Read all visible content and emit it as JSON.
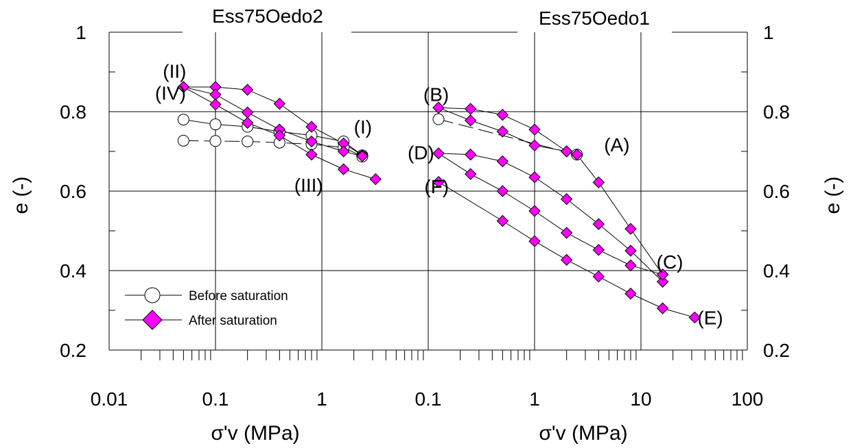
{
  "colors": {
    "after_fill": "#ff00ff",
    "before_fill": "#ffffff",
    "line": "#000000"
  },
  "legend": {
    "before": "Before saturation",
    "after": "After saturation"
  },
  "chart_data": [
    {
      "type": "scatter",
      "title": "Ess75Oedo2",
      "xlabel": "σ'v (MPa)",
      "ylabel": "e (-)",
      "xscale": "log",
      "xlim": [
        0.01,
        3.3
      ],
      "ylim": [
        0.2,
        1.0
      ],
      "x_tick_labels": [
        "0.01",
        "0.1",
        "1"
      ],
      "y_tick_labels": [
        "0.2",
        "0.4",
        "0.6",
        "0.8",
        "1"
      ],
      "grid": true,
      "series": [
        {
          "name": "Before saturation",
          "points": [
            [
              0.05,
              0.78
            ],
            [
              0.1,
              0.768
            ],
            [
              0.2,
              0.762
            ],
            [
              0.4,
              0.75
            ],
            [
              0.8,
              0.74
            ],
            [
              1.6,
              0.725
            ],
            [
              2.4,
              0.69
            ]
          ]
        },
        {
          "name": "Before saturation",
          "dashed": true,
          "points": [
            [
              0.05,
              0.727
            ],
            [
              0.1,
              0.726
            ],
            [
              0.2,
              0.725
            ],
            [
              0.4,
              0.722
            ],
            [
              0.8,
              0.718
            ],
            [
              1.6,
              0.71
            ],
            [
              2.4,
              0.687
            ]
          ]
        },
        {
          "name": "After saturation",
          "points": [
            [
              0.05,
              0.862
            ],
            [
              0.1,
              0.862
            ],
            [
              0.2,
              0.855
            ],
            [
              0.4,
              0.82
            ],
            [
              0.8,
              0.762
            ],
            [
              1.6,
              0.72
            ],
            [
              2.4,
              0.69
            ]
          ]
        },
        {
          "name": "After saturation",
          "points": [
            [
              0.05,
              0.862
            ],
            [
              0.1,
              0.843
            ],
            [
              0.2,
              0.798
            ],
            [
              0.4,
              0.755
            ],
            [
              0.8,
              0.725
            ],
            [
              1.6,
              0.7
            ],
            [
              2.4,
              0.688
            ]
          ]
        },
        {
          "name": "After saturation",
          "points": [
            [
              0.05,
              0.862
            ],
            [
              0.1,
              0.818
            ],
            [
              0.2,
              0.772
            ],
            [
              0.4,
              0.74
            ],
            [
              0.8,
              0.692
            ],
            [
              1.6,
              0.655
            ],
            [
              3.2,
              0.63
            ]
          ]
        }
      ],
      "annotations": [
        {
          "text": "(II)",
          "x": 0.032,
          "y": 0.885
        },
        {
          "text": "(IV)",
          "x": 0.027,
          "y": 0.83
        },
        {
          "text": "(I)",
          "x": 2.0,
          "y": 0.745
        },
        {
          "text": "(III)",
          "x": 0.55,
          "y": 0.598
        }
      ]
    },
    {
      "type": "scatter",
      "title": "Ess75Oedo1",
      "xlabel": "σ'v (MPa)",
      "ylabel": "e (-)",
      "xscale": "log",
      "xlim": [
        0.1,
        100
      ],
      "ylim": [
        0.2,
        1.0
      ],
      "x_tick_labels": [
        "0.1",
        "1",
        "10",
        "100"
      ],
      "y_tick_labels": [
        "0.2",
        "0.4",
        "0.6",
        "0.8",
        "1"
      ],
      "grid": true,
      "series": [
        {
          "name": "Before saturation",
          "dashed": true,
          "points": [
            [
              0.125,
              0.781
            ],
            [
              2.5,
              0.692
            ]
          ]
        },
        {
          "name": "After saturation",
          "points": [
            [
              0.125,
              0.81
            ],
            [
              0.25,
              0.807
            ],
            [
              0.5,
              0.792
            ],
            [
              1,
              0.755
            ],
            [
              2,
              0.7
            ]
          ]
        },
        {
          "name": "After saturation",
          "points": [
            [
              0.125,
              0.81
            ],
            [
              0.25,
              0.778
            ],
            [
              0.5,
              0.75
            ],
            [
              1,
              0.715
            ],
            [
              2,
              0.7
            ]
          ]
        },
        {
          "name": "After saturation",
          "points": [
            [
              2.5,
              0.692
            ],
            [
              4,
              0.622
            ],
            [
              8,
              0.505
            ],
            [
              16,
              0.39
            ]
          ]
        },
        {
          "name": "After saturation",
          "points": [
            [
              0.125,
              0.695
            ],
            [
              0.25,
              0.692
            ],
            [
              0.5,
              0.675
            ],
            [
              1,
              0.635
            ],
            [
              2,
              0.58
            ],
            [
              4,
              0.517
            ],
            [
              8,
              0.45
            ],
            [
              16,
              0.372
            ]
          ]
        },
        {
          "name": "After saturation",
          "points": [
            [
              0.125,
              0.695
            ],
            [
              0.25,
              0.643
            ],
            [
              0.5,
              0.6
            ],
            [
              1,
              0.55
            ],
            [
              2,
              0.495
            ],
            [
              4,
              0.452
            ],
            [
              8,
              0.413
            ],
            [
              16,
              0.39
            ]
          ]
        },
        {
          "name": "After saturation",
          "points": [
            [
              0.125,
              0.623
            ],
            [
              0.5,
              0.525
            ],
            [
              1,
              0.474
            ],
            [
              2,
              0.427
            ],
            [
              4,
              0.385
            ],
            [
              8,
              0.342
            ],
            [
              16,
              0.305
            ],
            [
              32,
              0.282
            ]
          ]
        }
      ],
      "annotations": [
        {
          "text": "(B)",
          "x": 0.09,
          "y": 0.827
        },
        {
          "text": "(A)",
          "x": 4.5,
          "y": 0.7
        },
        {
          "text": "(D)",
          "x": 0.064,
          "y": 0.68
        },
        {
          "text": "(F)",
          "x": 0.092,
          "y": 0.595
        },
        {
          "text": "(C)",
          "x": 14,
          "y": 0.405
        },
        {
          "text": "(E)",
          "x": 34,
          "y": 0.265
        }
      ]
    }
  ]
}
